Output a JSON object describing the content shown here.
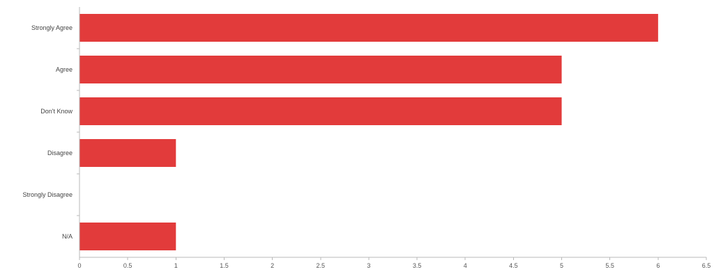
{
  "chart_data": {
    "type": "bar",
    "orientation": "horizontal",
    "categories": [
      "Strongly Agree",
      "Agree",
      "Don't Know",
      "Disagree",
      "Strongly Disagree",
      "N/A"
    ],
    "values": [
      6,
      5,
      5,
      1,
      0,
      1
    ],
    "xlim": [
      0,
      6.5
    ],
    "x_ticks": [
      "0",
      "0.5",
      "1",
      "1.5",
      "2",
      "2.5",
      "3",
      "3.5",
      "4",
      "4.5",
      "5",
      "5.5",
      "6",
      "6.5"
    ],
    "bar_color": "#e23b3b",
    "grid": false,
    "legend": "none",
    "title": "",
    "xlabel": "",
    "ylabel": ""
  }
}
